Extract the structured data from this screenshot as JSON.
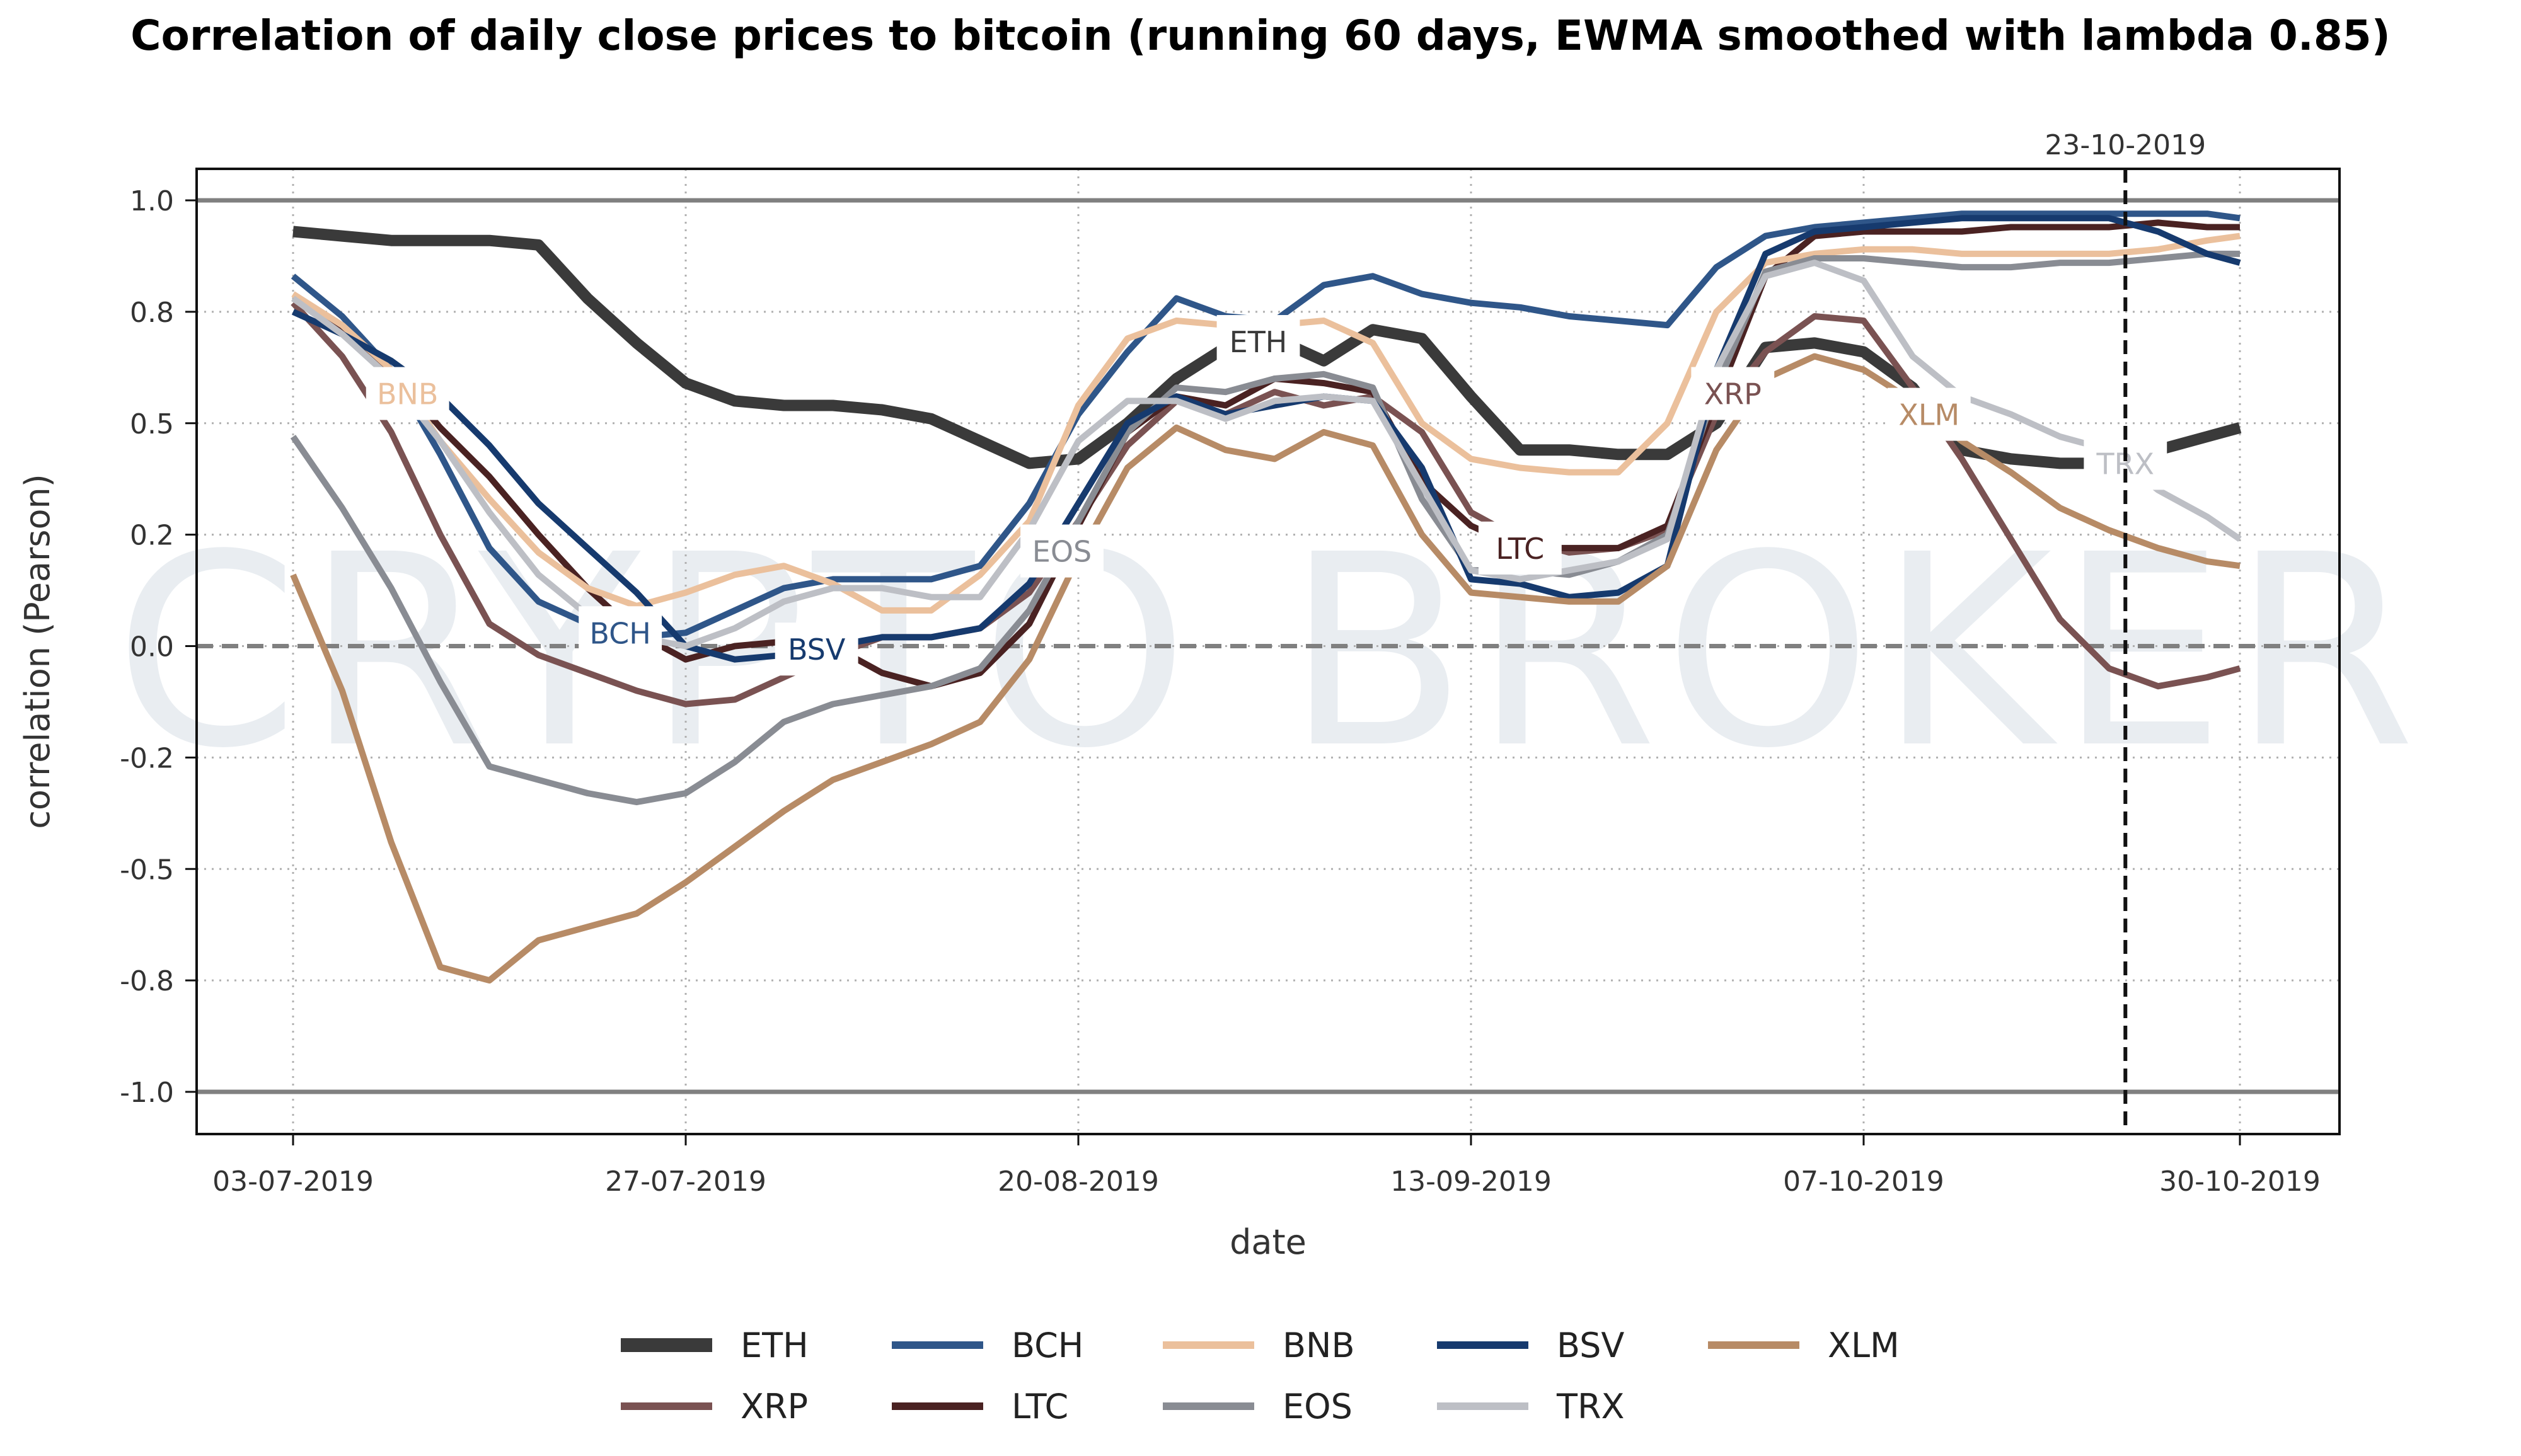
{
  "chart_data": {
    "type": "line",
    "title": "Correlation of daily close prices to bitcoin (running 60 days, EWMA smoothed with lambda 0.85)",
    "xlabel": "date",
    "ylabel": "correlation (Pearson)",
    "ylim": [
      -1.1,
      1.07
    ],
    "x_start_date": "03-07-2019",
    "x_days": [
      0,
      3,
      6,
      9,
      12,
      15,
      18,
      21,
      24,
      27,
      30,
      33,
      36,
      39,
      42,
      45,
      48,
      51,
      54,
      57,
      60,
      63,
      66,
      69,
      72,
      75,
      78,
      81,
      84,
      87,
      90,
      93,
      96,
      99,
      102,
      105,
      108,
      111,
      114,
      117,
      119
    ],
    "xlim_days": [
      -6,
      125
    ],
    "x_ticks": [
      {
        "day": 0,
        "label": "03-07-2019"
      },
      {
        "day": 24,
        "label": "27-07-2019"
      },
      {
        "day": 48,
        "label": "20-08-2019"
      },
      {
        "day": 72,
        "label": "13-09-2019"
      },
      {
        "day": 96,
        "label": "07-10-2019"
      },
      {
        "day": 119,
        "label": "30-10-2019"
      }
    ],
    "y_ticks": [
      {
        "value": 1.0,
        "label": "1.0"
      },
      {
        "value": 0.75,
        "label": "0.8"
      },
      {
        "value": 0.5,
        "label": "0.5"
      },
      {
        "value": 0.25,
        "label": "0.2"
      },
      {
        "value": 0.0,
        "label": "0.0"
      },
      {
        "value": -0.25,
        "label": "-0.2"
      },
      {
        "value": -0.5,
        "label": "-0.5"
      },
      {
        "value": -0.75,
        "label": "-0.8"
      },
      {
        "value": -1.0,
        "label": "-1.0"
      }
    ],
    "grid": true,
    "reference_lines": [
      {
        "value": 1.0,
        "style": "solid"
      },
      {
        "value": -1.0,
        "style": "solid"
      },
      {
        "value": 0.0,
        "style": "dashed"
      }
    ],
    "marker_line": {
      "day": 112,
      "label": "23-10-2019"
    },
    "watermark": "CRYPTO BROKER",
    "legend_position": "bottom-center",
    "series": [
      {
        "name": "ETH",
        "color": "#3a3a3a",
        "width": 18,
        "label_day": 59,
        "values": [
          0.93,
          0.92,
          0.91,
          0.91,
          0.91,
          0.9,
          0.78,
          0.68,
          0.59,
          0.55,
          0.54,
          0.54,
          0.53,
          0.51,
          0.46,
          0.41,
          0.42,
          0.5,
          0.6,
          0.67,
          0.69,
          0.64,
          0.71,
          0.69,
          0.56,
          0.44,
          0.44,
          0.43,
          0.43,
          0.5,
          0.67,
          0.68,
          0.66,
          0.58,
          0.44,
          0.42,
          0.41,
          0.41,
          0.44,
          0.47,
          0.49
        ]
      },
      {
        "name": "XRP",
        "color": "#7a5252",
        "width": 10,
        "label_day": 88,
        "values": [
          0.77,
          0.65,
          0.48,
          0.25,
          0.05,
          -0.02,
          -0.06,
          -0.1,
          -0.13,
          -0.12,
          -0.07,
          -0.02,
          0.02,
          0.02,
          0.04,
          0.12,
          0.28,
          0.45,
          0.55,
          0.52,
          0.57,
          0.54,
          0.56,
          0.48,
          0.3,
          0.24,
          0.21,
          0.22,
          0.26,
          0.52,
          0.66,
          0.74,
          0.73,
          0.58,
          0.42,
          0.24,
          0.06,
          -0.05,
          -0.09,
          -0.07,
          -0.05
        ]
      },
      {
        "name": "BCH",
        "color": "#2f5689",
        "width": 10,
        "label_day": 20,
        "values": [
          0.83,
          0.74,
          0.62,
          0.43,
          0.22,
          0.1,
          0.05,
          0.02,
          0.03,
          0.08,
          0.13,
          0.15,
          0.15,
          0.15,
          0.18,
          0.32,
          0.52,
          0.66,
          0.78,
          0.74,
          0.73,
          0.81,
          0.83,
          0.79,
          0.77,
          0.76,
          0.74,
          0.73,
          0.72,
          0.85,
          0.92,
          0.94,
          0.95,
          0.96,
          0.97,
          0.97,
          0.97,
          0.97,
          0.97,
          0.97,
          0.96
        ]
      },
      {
        "name": "LTC",
        "color": "#4a2222",
        "width": 10,
        "label_day": 75,
        "values": [
          0.78,
          0.71,
          0.62,
          0.49,
          0.38,
          0.25,
          0.13,
          0.03,
          -0.03,
          0.0,
          0.01,
          0.0,
          -0.06,
          -0.09,
          -0.06,
          0.05,
          0.27,
          0.48,
          0.56,
          0.54,
          0.6,
          0.59,
          0.57,
          0.37,
          0.27,
          0.22,
          0.22,
          0.22,
          0.27,
          0.55,
          0.83,
          0.92,
          0.93,
          0.93,
          0.93,
          0.94,
          0.94,
          0.94,
          0.95,
          0.94,
          0.94
        ]
      },
      {
        "name": "BNB",
        "color": "#ebc09c",
        "width": 10,
        "label_day": 7,
        "values": [
          0.79,
          0.72,
          0.62,
          0.46,
          0.33,
          0.21,
          0.13,
          0.09,
          0.12,
          0.16,
          0.18,
          0.14,
          0.08,
          0.08,
          0.16,
          0.28,
          0.54,
          0.69,
          0.73,
          0.72,
          0.72,
          0.73,
          0.68,
          0.5,
          0.42,
          0.4,
          0.39,
          0.39,
          0.5,
          0.75,
          0.86,
          0.88,
          0.89,
          0.89,
          0.88,
          0.88,
          0.88,
          0.88,
          0.89,
          0.91,
          0.92
        ]
      },
      {
        "name": "EOS",
        "color": "#898c93",
        "width": 10,
        "label_day": 47,
        "values": [
          0.47,
          0.31,
          0.13,
          -0.08,
          -0.27,
          -0.3,
          -0.33,
          -0.35,
          -0.33,
          -0.26,
          -0.17,
          -0.13,
          -0.11,
          -0.09,
          -0.05,
          0.08,
          0.28,
          0.48,
          0.58,
          0.57,
          0.6,
          0.61,
          0.58,
          0.33,
          0.17,
          0.17,
          0.16,
          0.19,
          0.25,
          0.58,
          0.84,
          0.87,
          0.87,
          0.86,
          0.85,
          0.85,
          0.86,
          0.86,
          0.87,
          0.88,
          0.88
        ]
      },
      {
        "name": "BSV",
        "color": "#163a6e",
        "width": 10,
        "label_day": 32,
        "values": [
          0.75,
          0.7,
          0.64,
          0.56,
          0.45,
          0.32,
          0.22,
          0.12,
          0.0,
          -0.03,
          -0.02,
          0.0,
          0.02,
          0.02,
          0.04,
          0.14,
          0.32,
          0.5,
          0.56,
          0.52,
          0.54,
          0.56,
          0.55,
          0.4,
          0.15,
          0.14,
          0.11,
          0.12,
          0.18,
          0.62,
          0.88,
          0.93,
          0.94,
          0.95,
          0.96,
          0.96,
          0.96,
          0.96,
          0.93,
          0.88,
          0.86
        ]
      },
      {
        "name": "TRX",
        "color": "#bdbfc5",
        "width": 10,
        "label_day": 112,
        "values": [
          0.78,
          0.7,
          0.6,
          0.46,
          0.3,
          0.16,
          0.07,
          0.02,
          0.0,
          0.04,
          0.1,
          0.13,
          0.13,
          0.11,
          0.11,
          0.26,
          0.46,
          0.55,
          0.55,
          0.51,
          0.55,
          0.56,
          0.55,
          0.36,
          0.17,
          0.15,
          0.17,
          0.19,
          0.24,
          0.62,
          0.83,
          0.86,
          0.82,
          0.65,
          0.56,
          0.52,
          0.47,
          0.44,
          0.35,
          0.29,
          0.24
        ]
      },
      {
        "name": "XLM",
        "color": "#b78b66",
        "width": 10,
        "label_day": 100,
        "values": [
          0.16,
          -0.1,
          -0.44,
          -0.72,
          -0.75,
          -0.66,
          -0.63,
          -0.6,
          -0.53,
          -0.45,
          -0.37,
          -0.3,
          -0.26,
          -0.22,
          -0.17,
          -0.03,
          0.2,
          0.4,
          0.49,
          0.44,
          0.42,
          0.48,
          0.45,
          0.25,
          0.12,
          0.11,
          0.1,
          0.1,
          0.18,
          0.44,
          0.6,
          0.65,
          0.62,
          0.55,
          0.46,
          0.39,
          0.31,
          0.26,
          0.22,
          0.19,
          0.18
        ]
      }
    ]
  }
}
